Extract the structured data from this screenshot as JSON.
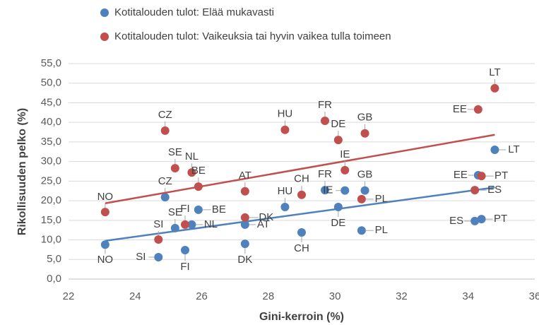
{
  "chart_data": {
    "type": "scatter",
    "xlabel": "Gini-kerroin (%)",
    "ylabel": "Rikollisuuden pelko (%)",
    "xlim": [
      22,
      36
    ],
    "xticks": [
      22,
      24,
      26,
      28,
      30,
      32,
      34,
      36
    ],
    "ylim": [
      0,
      55
    ],
    "yticks": [
      {
        "value": 0,
        "label": "0,0"
      },
      {
        "value": 5,
        "label": "5,0"
      },
      {
        "value": 10,
        "label": "10,0"
      },
      {
        "value": 15,
        "label": "15,0"
      },
      {
        "value": 20,
        "label": "20,0"
      },
      {
        "value": 25,
        "label": "25,0"
      },
      {
        "value": 30,
        "label": "30,0"
      },
      {
        "value": 35,
        "label": "35,0"
      },
      {
        "value": 40,
        "label": "40,0"
      },
      {
        "value": 45,
        "label": "45,0"
      },
      {
        "value": 50,
        "label": "50,0"
      },
      {
        "value": 55,
        "label": "55,0"
      }
    ],
    "grid": true,
    "trendline": true,
    "legend": "top-left",
    "series": [
      {
        "name": "Kotitalouden tulot: Elää mukavasti",
        "color": "#4f81bd",
        "labels": [
          "NO",
          "SI",
          "FI",
          "SE",
          "NL",
          "CZ",
          "BE",
          "DK",
          "AT",
          "HU",
          "CH",
          "FR",
          "IE",
          "DE",
          "GB",
          "PL",
          "EE",
          "LT",
          "ES",
          "PT"
        ],
        "x": [
          23.1,
          24.7,
          25.5,
          25.2,
          25.7,
          24.9,
          25.9,
          27.3,
          27.3,
          28.5,
          29.0,
          29.7,
          30.3,
          30.1,
          30.9,
          30.8,
          34.3,
          34.8,
          34.2,
          34.4
        ],
        "values": [
          8.8,
          5.6,
          7.4,
          13.0,
          13.9,
          20.9,
          17.7,
          9.0,
          13.9,
          18.4,
          11.9,
          22.7,
          22.6,
          18.4,
          22.6,
          12.4,
          26.5,
          33.0,
          14.8,
          15.3
        ]
      },
      {
        "name": "Kotitalouden tulot: Vaikeuksia tai hyvin vaikea tulla toimeen",
        "color": "#c0504d",
        "labels": [
          "NO",
          "SI",
          "CZ",
          "SE",
          "NL",
          "BE",
          "FI",
          "AT",
          "DK",
          "HU",
          "CH",
          "FR",
          "DE",
          "GB",
          "IE",
          "PL",
          "EE",
          "LT",
          "PT",
          "ES"
        ],
        "x": [
          23.1,
          24.7,
          24.9,
          25.2,
          25.7,
          25.9,
          25.5,
          27.3,
          27.3,
          28.5,
          29.0,
          29.7,
          30.1,
          30.9,
          30.3,
          30.8,
          34.3,
          34.8,
          34.4,
          34.2
        ],
        "values": [
          17.1,
          10.1,
          37.9,
          28.3,
          27.2,
          23.6,
          13.9,
          22.4,
          15.7,
          38.1,
          21.5,
          40.4,
          35.5,
          37.2,
          27.8,
          20.4,
          43.3,
          48.7,
          26.3,
          22.7
        ]
      }
    ]
  }
}
